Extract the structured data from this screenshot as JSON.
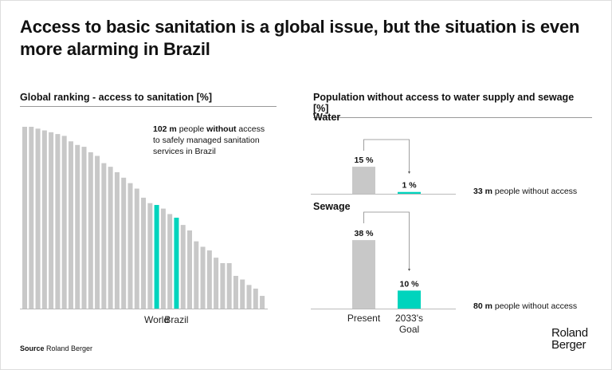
{
  "title": "Access to basic sanitation is a global issue, but the situation is even more alarming in Brazil",
  "left": {
    "heading": "Global ranking - access to sanitation [%]",
    "note": {
      "value": "102 m",
      "t1": " people ",
      "bold": "without",
      "t2": " access to safely managed sanitation services in Brazil"
    }
  },
  "right": {
    "heading": "Population without access to water supply and sewage [%]",
    "water_note": {
      "value": "33 m",
      "text": " people without access"
    },
    "sewage_note": {
      "value": "80 m",
      "text": " people without access"
    }
  },
  "source": {
    "label": "Source",
    "text": " Roland Berger"
  },
  "logo": {
    "line1": "Roland",
    "line2": "Berger"
  },
  "colors": {
    "gray": "#c8c8c8",
    "highlight": "#00d4bd"
  },
  "chart_data": [
    {
      "type": "bar",
      "title": "Global ranking - access to sanitation [%]",
      "values": [
        100,
        100,
        99,
        98,
        97,
        96,
        95,
        92,
        90,
        89,
        86,
        84,
        80,
        78,
        75,
        72,
        69,
        66,
        61,
        58,
        57,
        55,
        52,
        50,
        46,
        43,
        37,
        34,
        32,
        28,
        25,
        25,
        18,
        16,
        13,
        11,
        7
      ],
      "highlights": [
        {
          "index": 20,
          "label": "World"
        },
        {
          "index": 23,
          "label": "Brazil"
        }
      ],
      "ylim": [
        0,
        100
      ]
    },
    {
      "type": "bar",
      "title": "Water",
      "categories": [
        "Present",
        "2033's Goal"
      ],
      "values": [
        15,
        1
      ],
      "labels": [
        "15 %",
        "1 %"
      ]
    },
    {
      "type": "bar",
      "title": "Sewage",
      "categories": [
        "Present",
        "2033's Goal"
      ],
      "values": [
        38,
        10
      ],
      "labels": [
        "38 %",
        "10 %"
      ]
    }
  ]
}
